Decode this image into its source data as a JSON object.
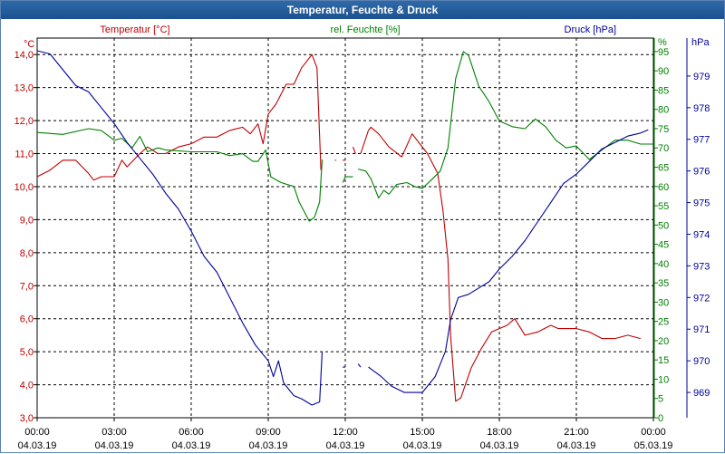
{
  "window": {
    "title": "Temperatur, Feuchte & Druck"
  },
  "colors": {
    "temperature": "#c00000",
    "humidity": "#008000",
    "pressure": "#00009c",
    "grid": "#000000",
    "titlebar": "#1f5a9a"
  },
  "chart_data": {
    "type": "line",
    "title": "Temperatur, Feuchte & Druck",
    "x": [
      "00:00",
      "03:00",
      "06:00",
      "09:00",
      "12:00",
      "15:00",
      "18:00",
      "21:00",
      "00:00"
    ],
    "x_dates": [
      "04.03.19",
      "04.03.19",
      "04.03.19",
      "04.03.19",
      "04.03.19",
      "04.03.19",
      "04.03.19",
      "04.03.19",
      "05.03.19"
    ],
    "xlim_hours": [
      0,
      24
    ],
    "legend": {
      "temperature": "Temperatur [°C]",
      "humidity": "rel. Feuchte [%]",
      "pressure": "Druck [hPa]"
    },
    "axes": {
      "left": {
        "unit": "°C",
        "range": [
          3,
          14.5
        ],
        "ticks": [
          "14,0",
          "13,0",
          "12,0",
          "11,0",
          "10,0",
          "9,0",
          "8,0",
          "7,0",
          "6,0",
          "5,0",
          "4,0",
          "3,0"
        ]
      },
      "right1": {
        "unit": "%",
        "range": [
          0,
          98.5
        ],
        "ticks": [
          "95",
          "90",
          "85",
          "80",
          "75",
          "70",
          "65",
          "60",
          "55",
          "50",
          "45",
          "40",
          "35",
          "30",
          "25",
          "20",
          "15",
          "10",
          "5",
          "0"
        ]
      },
      "right2": {
        "unit": "hPa",
        "range": [
          968.2,
          980.2
        ],
        "ticks": [
          "979",
          "978",
          "977",
          "976",
          "975",
          "974",
          "973",
          "972",
          "971",
          "970",
          "969"
        ]
      }
    },
    "series": [
      {
        "name": "Temperatur [°C]",
        "axis": "left",
        "color": "#c00000",
        "segments": [
          [
            [
              0,
              10.3
            ],
            [
              0.5,
              10.5
            ],
            [
              1,
              10.8
            ],
            [
              1.5,
              10.8
            ],
            [
              2,
              10.4
            ],
            [
              2.2,
              10.2
            ],
            [
              2.5,
              10.3
            ],
            [
              3,
              10.3
            ],
            [
              3.3,
              10.8
            ],
            [
              3.5,
              10.6
            ],
            [
              4,
              11
            ],
            [
              4.3,
              11.2
            ],
            [
              4.7,
              11
            ],
            [
              5,
              11
            ],
            [
              5.5,
              11.2
            ],
            [
              6,
              11.3
            ],
            [
              6.5,
              11.5
            ],
            [
              7,
              11.5
            ],
            [
              7.5,
              11.7
            ],
            [
              8,
              11.8
            ],
            [
              8.3,
              11.6
            ],
            [
              8.6,
              11.9
            ],
            [
              8.8,
              11.3
            ],
            [
              9,
              12.2
            ],
            [
              9.3,
              12.5
            ],
            [
              9.7,
              13.1
            ],
            [
              10,
              13.1
            ],
            [
              10.3,
              13.6
            ],
            [
              10.7,
              14
            ],
            [
              10.9,
              13.6
            ],
            [
              11.05,
              10.5
            ]
          ],
          [
            [
              11.6,
              10.8
            ],
            [
              11.65,
              10.8
            ]
          ],
          [
            [
              11.9,
              10.8
            ],
            [
              12,
              10.8
            ]
          ],
          [
            [
              12.3,
              11.2
            ],
            [
              12.4,
              11
            ]
          ],
          [
            [
              12.6,
              11
            ],
            [
              12.9,
              11.7
            ],
            [
              13,
              11.8
            ],
            [
              13.3,
              11.6
            ],
            [
              13.7,
              11.2
            ],
            [
              14.2,
              10.9
            ],
            [
              14.6,
              11.6
            ],
            [
              14.9,
              11.3
            ],
            [
              15.2,
              11
            ],
            [
              15.6,
              10.4
            ],
            [
              15.8,
              9.3
            ],
            [
              16,
              7.8
            ],
            [
              16.1,
              5.5
            ],
            [
              16.3,
              3.5
            ],
            [
              16.5,
              3.6
            ],
            [
              16.9,
              4.5
            ],
            [
              17.3,
              5.1
            ],
            [
              17.7,
              5.6
            ],
            [
              18.3,
              5.8
            ],
            [
              18.6,
              6
            ],
            [
              19,
              5.5
            ],
            [
              19.5,
              5.6
            ],
            [
              20,
              5.8
            ],
            [
              20.3,
              5.7
            ],
            [
              21,
              5.7
            ],
            [
              21.5,
              5.6
            ],
            [
              22,
              5.4
            ],
            [
              22.5,
              5.4
            ],
            [
              23,
              5.5
            ],
            [
              23.5,
              5.4
            ]
          ]
        ]
      },
      {
        "name": "rel. Feuchte [%]",
        "axis": "right1",
        "color": "#008000",
        "segments": [
          [
            [
              0,
              74
            ],
            [
              1,
              73.5
            ],
            [
              2,
              75
            ],
            [
              2.5,
              74.5
            ],
            [
              3,
              72
            ],
            [
              3.3,
              72.5
            ],
            [
              3.7,
              70
            ],
            [
              4,
              73
            ],
            [
              4.3,
              69
            ],
            [
              4.7,
              70
            ],
            [
              5,
              69.5
            ],
            [
              6,
              69
            ],
            [
              7,
              69
            ],
            [
              7.5,
              68
            ],
            [
              8,
              68.5
            ],
            [
              8.4,
              66.5
            ],
            [
              8.6,
              66.5
            ],
            [
              8.9,
              69.5
            ],
            [
              9.1,
              62.5
            ],
            [
              9.5,
              61
            ],
            [
              10,
              60
            ],
            [
              10.2,
              56
            ],
            [
              10.6,
              51
            ],
            [
              10.8,
              52
            ],
            [
              11,
              56
            ],
            [
              11.1,
              67
            ]
          ],
          [
            [
              11.9,
              61
            ],
            [
              12,
              62.5
            ],
            [
              12.3,
              62.5
            ]
          ],
          [
            [
              12.5,
              64.5
            ],
            [
              12.8,
              64
            ],
            [
              13,
              62
            ],
            [
              13.3,
              57
            ],
            [
              13.5,
              59
            ],
            [
              13.7,
              58
            ],
            [
              14,
              60.5
            ],
            [
              14.4,
              61
            ],
            [
              14.7,
              60
            ],
            [
              15,
              59.5
            ],
            [
              15.4,
              62
            ],
            [
              15.7,
              64
            ],
            [
              16,
              70
            ],
            [
              16.3,
              88
            ],
            [
              16.6,
              95
            ],
            [
              16.8,
              94
            ],
            [
              17.2,
              86
            ],
            [
              17.6,
              82
            ],
            [
              18,
              77
            ],
            [
              18.5,
              75.5
            ],
            [
              19,
              75
            ],
            [
              19.4,
              77.5
            ],
            [
              19.8,
              75.5
            ],
            [
              20.2,
              72
            ],
            [
              20.6,
              70
            ],
            [
              21,
              70.5
            ],
            [
              21.5,
              67
            ],
            [
              22,
              69.5
            ],
            [
              22.5,
              72
            ],
            [
              23,
              72
            ],
            [
              23.5,
              71
            ],
            [
              24,
              71
            ]
          ]
        ]
      },
      {
        "name": "Druck [hPa]",
        "axis": "right2",
        "color": "#00009c",
        "segments": [
          [
            [
              0,
              979.8
            ],
            [
              0.5,
              979.7
            ],
            [
              1,
              979.2
            ],
            [
              1.5,
              978.7
            ],
            [
              2,
              978.5
            ],
            [
              2.5,
              978
            ],
            [
              3,
              977.5
            ],
            [
              3.5,
              976.9
            ],
            [
              4,
              976.4
            ],
            [
              4.5,
              975.9
            ],
            [
              5,
              975.3
            ],
            [
              5.5,
              974.8
            ],
            [
              6,
              974.1
            ],
            [
              6.5,
              973.3
            ],
            [
              7,
              972.8
            ],
            [
              7.5,
              972
            ],
            [
              8,
              971.2
            ],
            [
              8.5,
              970.5
            ],
            [
              9,
              970
            ],
            [
              9.2,
              969.5
            ],
            [
              9.4,
              970
            ],
            [
              9.6,
              969.3
            ],
            [
              10,
              968.9
            ],
            [
              10.3,
              968.8
            ],
            [
              10.7,
              968.6
            ],
            [
              11,
              968.7
            ],
            [
              11.1,
              970.3
            ]
          ],
          [
            [
              11.9,
              969.8
            ],
            [
              12,
              969.8
            ]
          ],
          [
            [
              12.5,
              969.9
            ],
            [
              12.6,
              969.8
            ]
          ],
          [
            [
              12.9,
              969.8
            ],
            [
              13.4,
              969.5
            ],
            [
              13.8,
              969.2
            ],
            [
              14.3,
              969
            ],
            [
              15,
              969
            ],
            [
              15.5,
              969.5
            ],
            [
              15.9,
              970.3
            ],
            [
              16.1,
              971.3
            ],
            [
              16.4,
              972
            ],
            [
              16.8,
              972.1
            ],
            [
              17.2,
              972.3
            ],
            [
              17.6,
              972.5
            ],
            [
              18,
              972.9
            ],
            [
              18.5,
              973.3
            ],
            [
              19,
              973.8
            ],
            [
              19.5,
              974.4
            ],
            [
              20,
              975
            ],
            [
              20.5,
              975.6
            ],
            [
              21,
              975.9
            ],
            [
              21.5,
              976.3
            ],
            [
              22,
              976.7
            ],
            [
              22.5,
              976.9
            ],
            [
              23,
              977.1
            ],
            [
              23.5,
              977.2
            ],
            [
              23.8,
              977.3
            ]
          ]
        ]
      }
    ]
  }
}
